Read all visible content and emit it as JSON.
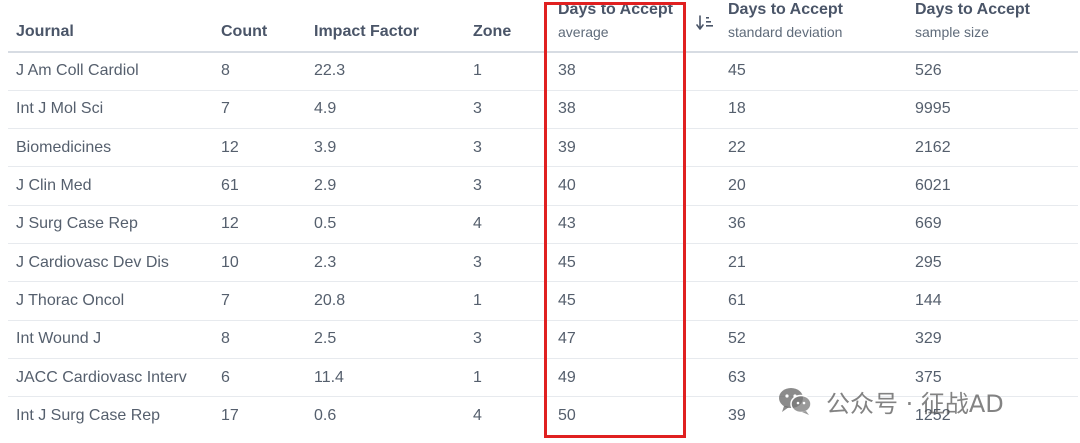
{
  "columns": [
    {
      "key": "journal",
      "label": "Journal",
      "sub": ""
    },
    {
      "key": "count",
      "label": "Count",
      "sub": ""
    },
    {
      "key": "impact_factor",
      "label": "Impact Factor",
      "sub": ""
    },
    {
      "key": "zone",
      "label": "Zone",
      "sub": ""
    },
    {
      "key": "avg",
      "label": "Days to Accept",
      "sub": "average"
    },
    {
      "key": "sd",
      "label": "Days to Accept",
      "sub": "standard deviation"
    },
    {
      "key": "ss",
      "label": "Days to Accept",
      "sub": "sample size"
    }
  ],
  "sort_indicator": {
    "icon": "sort-descending-icon",
    "column": "avg"
  },
  "rows": [
    {
      "journal": "J Am Coll Cardiol",
      "count": "8",
      "impact_factor": "22.3",
      "zone": "1",
      "avg": "38",
      "sd": "45",
      "ss": "526"
    },
    {
      "journal": "Int J Mol Sci",
      "count": "7",
      "impact_factor": "4.9",
      "zone": "3",
      "avg": "38",
      "sd": "18",
      "ss": "9995"
    },
    {
      "journal": "Biomedicines",
      "count": "12",
      "impact_factor": "3.9",
      "zone": "3",
      "avg": "39",
      "sd": "22",
      "ss": "2162"
    },
    {
      "journal": "J Clin Med",
      "count": "61",
      "impact_factor": "2.9",
      "zone": "3",
      "avg": "40",
      "sd": "20",
      "ss": "6021"
    },
    {
      "journal": "J Surg Case Rep",
      "count": "12",
      "impact_factor": "0.5",
      "zone": "4",
      "avg": "43",
      "sd": "36",
      "ss": "669"
    },
    {
      "journal": "J Cardiovasc Dev Dis",
      "count": "10",
      "impact_factor": "2.3",
      "zone": "3",
      "avg": "45",
      "sd": "21",
      "ss": "295"
    },
    {
      "journal": "J Thorac Oncol",
      "count": "7",
      "impact_factor": "20.8",
      "zone": "1",
      "avg": "45",
      "sd": "61",
      "ss": "144"
    },
    {
      "journal": "Int Wound J",
      "count": "8",
      "impact_factor": "2.5",
      "zone": "3",
      "avg": "47",
      "sd": "52",
      "ss": "329"
    },
    {
      "journal": "JACC Cardiovasc Interv",
      "count": "6",
      "impact_factor": "11.4",
      "zone": "1",
      "avg": "49",
      "sd": "63",
      "ss": "375"
    },
    {
      "journal": "Int J Surg Case Rep",
      "count": "17",
      "impact_factor": "0.6",
      "zone": "4",
      "avg": "50",
      "sd": "39",
      "ss": "1252"
    }
  ],
  "highlight": {
    "column": "avg",
    "color": "#e02020"
  },
  "watermark": {
    "text": "公众号 · 征战AD",
    "icon": "wechat-logo-icon"
  },
  "colors": {
    "text": "#555f6d",
    "header": "#4a5568",
    "divider": "#d7dce3",
    "row_line": "#e7eaee"
  }
}
